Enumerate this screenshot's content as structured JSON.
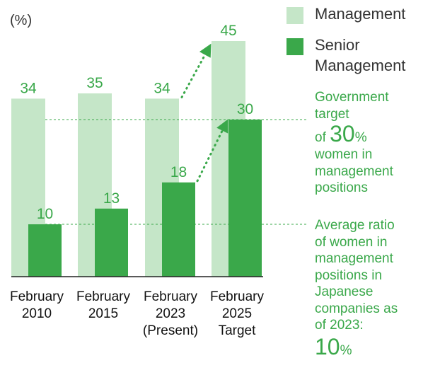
{
  "chart_data": {
    "type": "bar",
    "unit_label": "(%)",
    "categories": [
      [
        "February",
        "2010"
      ],
      [
        "February",
        "2015"
      ],
      [
        "February",
        "2023",
        "(Present)"
      ],
      [
        "February",
        "2025",
        "Target"
      ]
    ],
    "series": [
      {
        "name": "Management",
        "values": [
          34,
          35,
          34,
          45
        ],
        "color": "#c5e6c8"
      },
      {
        "name": "Senior Management",
        "values": [
          10,
          13,
          18,
          30
        ],
        "color": "#3aa84a"
      }
    ],
    "reference_lines": [
      30,
      10
    ],
    "ylim": [
      0,
      50
    ],
    "legend_position": "top-right",
    "grid": false
  },
  "legend": {
    "management": "Management",
    "senior_line1": "Senior",
    "senior_line2": "Management"
  },
  "notes": {
    "gov_line1": "Government",
    "gov_line2": "target",
    "gov_of": "of ",
    "gov_value": "30",
    "gov_pct": "%",
    "gov_line4": "women in",
    "gov_line5": "management",
    "gov_line6": "positions",
    "avg_line1": "Average ratio",
    "avg_line2": "of women in",
    "avg_line3": "management",
    "avg_line4": "positions in",
    "avg_line5": "Japanese",
    "avg_line6": "companies as",
    "avg_line7": "of 2023:",
    "avg_value": "10",
    "avg_pct": "%"
  },
  "colors": {
    "light_green": "#c5e6c8",
    "dark_green": "#3aa84a",
    "arrow_green": "#3aa84a"
  }
}
